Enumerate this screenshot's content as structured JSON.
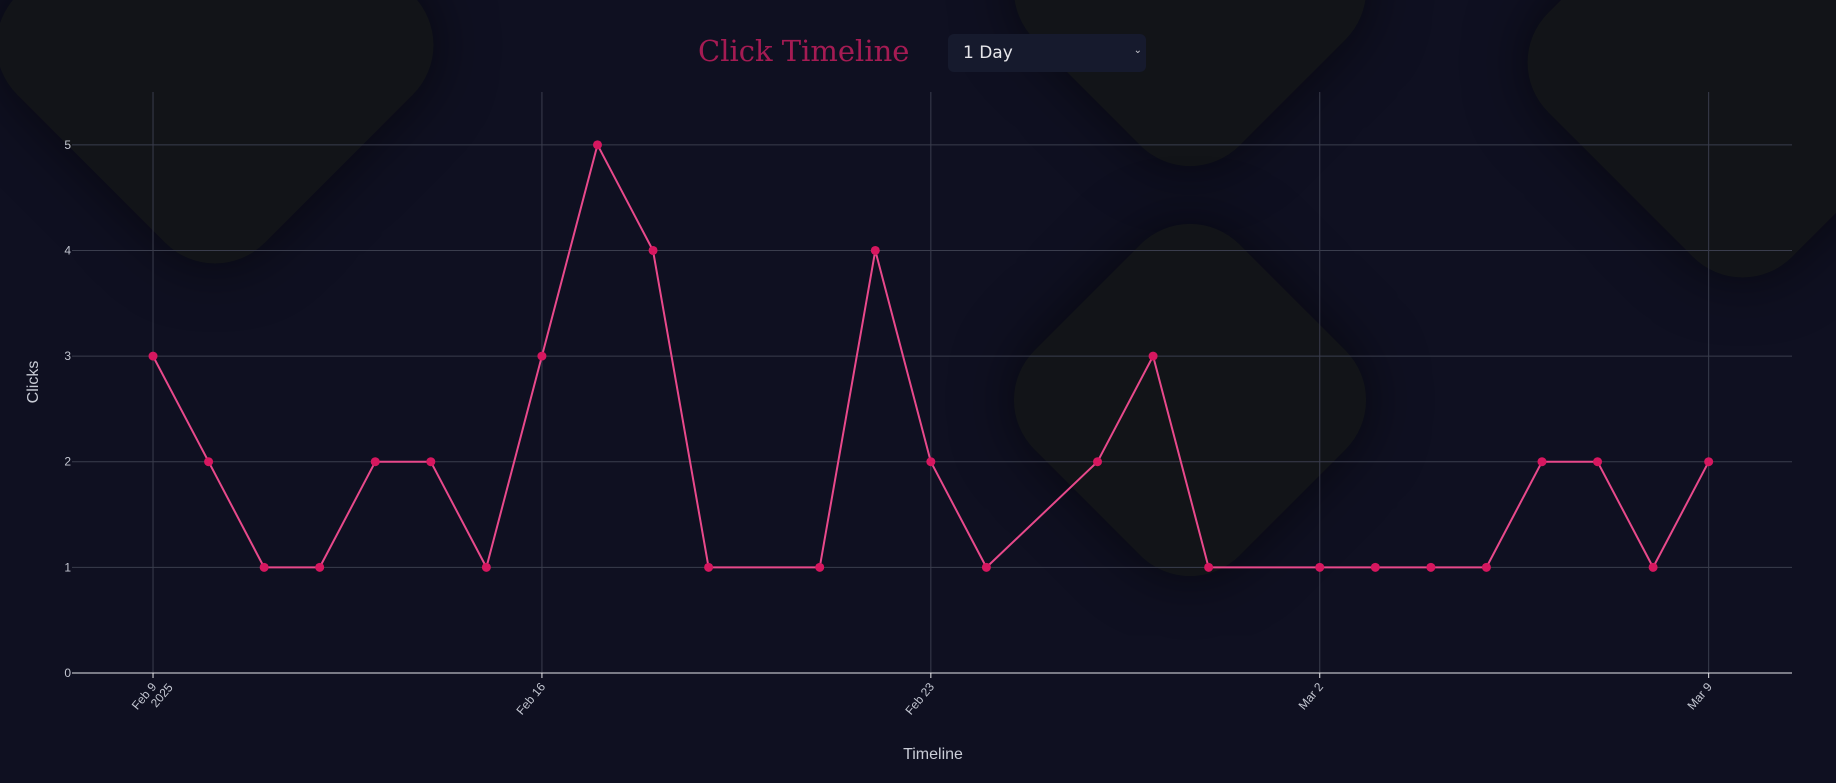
{
  "header": {
    "title": "Click Timeline",
    "range_select": {
      "selected": "1 Day"
    }
  },
  "colors": {
    "background": "#0f1021",
    "title": "#a51b53",
    "line": "#e8498b",
    "point": "#d6175f",
    "grid": "#3a3d4d",
    "axis": "#e6e6ea",
    "tick_text": "#c3c6d1"
  },
  "chart_data": {
    "type": "line",
    "title": "",
    "xlabel": "Timeline",
    "ylabel": "Clicks",
    "x_ticks": [
      {
        "date": "2025-02-09",
        "label": [
          "Feb 9",
          "2025"
        ]
      },
      {
        "date": "2025-02-16",
        "label": [
          "Feb 16"
        ]
      },
      {
        "date": "2025-02-23",
        "label": [
          "Feb 23"
        ]
      },
      {
        "date": "2025-03-02",
        "label": [
          "Mar 2"
        ]
      },
      {
        "date": "2025-03-09",
        "label": [
          "Mar 9"
        ]
      }
    ],
    "y_ticks": [
      0,
      1,
      2,
      3,
      4,
      5
    ],
    "ylim": [
      0,
      5.5
    ],
    "xlim": [
      "2025-02-07T13:00",
      "2025-03-10T12:00"
    ],
    "grid": true,
    "series": [
      {
        "points": [
          {
            "x": "2025-02-09",
            "y": 3
          },
          {
            "x": "2025-02-10",
            "y": 2
          },
          {
            "x": "2025-02-11",
            "y": 1
          },
          {
            "x": "2025-02-12",
            "y": 1
          },
          {
            "x": "2025-02-13",
            "y": 2
          },
          {
            "x": "2025-02-14",
            "y": 2
          },
          {
            "x": "2025-02-15",
            "y": 1
          },
          {
            "x": "2025-02-16",
            "y": 3
          },
          {
            "x": "2025-02-17",
            "y": 5
          },
          {
            "x": "2025-02-18",
            "y": 4
          },
          {
            "x": "2025-02-19",
            "y": 1
          },
          {
            "x": "2025-02-21",
            "y": 1
          },
          {
            "x": "2025-02-22",
            "y": 4
          },
          {
            "x": "2025-02-23",
            "y": 2
          },
          {
            "x": "2025-02-24",
            "y": 1
          },
          {
            "x": "2025-02-26",
            "y": 2
          },
          {
            "x": "2025-02-27",
            "y": 3
          },
          {
            "x": "2025-02-28",
            "y": 1
          },
          {
            "x": "2025-03-02",
            "y": 1
          },
          {
            "x": "2025-03-03",
            "y": 1
          },
          {
            "x": "2025-03-04",
            "y": 1
          },
          {
            "x": "2025-03-05",
            "y": 1
          },
          {
            "x": "2025-03-06",
            "y": 2
          },
          {
            "x": "2025-03-07",
            "y": 2
          },
          {
            "x": "2025-03-08",
            "y": 1
          },
          {
            "x": "2025-03-09",
            "y": 2
          }
        ]
      }
    ]
  }
}
